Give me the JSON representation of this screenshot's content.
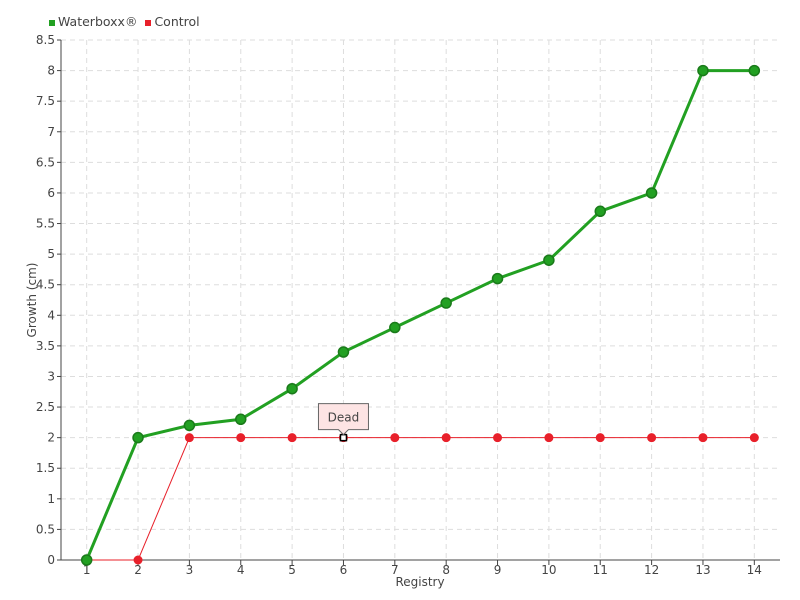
{
  "chart_data": {
    "type": "line",
    "title": "",
    "xlabel": "Registry",
    "ylabel": "Growth (cm)",
    "categories": [
      "1",
      "2",
      "3",
      "4",
      "5",
      "6",
      "7",
      "8",
      "9",
      "10",
      "11",
      "12",
      "13",
      "14"
    ],
    "ylim": [
      0,
      8.5
    ],
    "yticks": [
      "0",
      "0.5",
      "1",
      "1.5",
      "2",
      "2.5",
      "3",
      "3.5",
      "4",
      "4.5",
      "5",
      "5.5",
      "6",
      "6.5",
      "7",
      "7.5",
      "8",
      "8.5"
    ],
    "grid": true,
    "legend_position": "top-left",
    "series": [
      {
        "name": "Waterboxx®",
        "color": "#22a022",
        "values": [
          0,
          2,
          2.2,
          2.3,
          2.8,
          3.4,
          3.8,
          4.2,
          4.6,
          4.9,
          5.7,
          6,
          8,
          8
        ]
      },
      {
        "name": "Control",
        "color": "#e8202a",
        "values": [
          0,
          0,
          2,
          2,
          2,
          2,
          2,
          2,
          2,
          2,
          2,
          2,
          2,
          2
        ]
      }
    ],
    "annotations": [
      {
        "series": "Control",
        "category": "6",
        "text": "Dead"
      }
    ]
  }
}
